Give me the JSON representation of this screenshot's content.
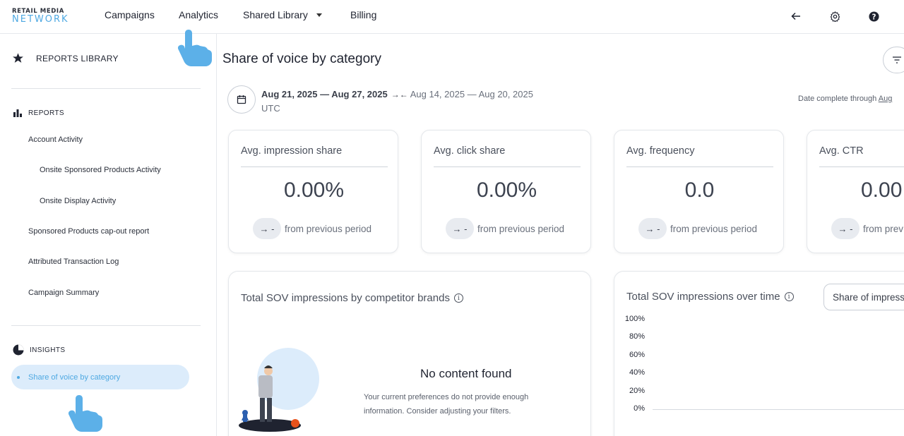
{
  "app": {
    "logo_line1": "RETAIL MEDIA",
    "logo_line2": "NETWORK",
    "brand_color": "#4fa9e2"
  },
  "topnav": {
    "items": [
      "Campaigns",
      "Analytics",
      "Shared Library",
      "Billing"
    ],
    "icons": [
      "arrow-back-icon",
      "gear-icon",
      "help-icon"
    ]
  },
  "sidebar": {
    "library_label": "REPORTS LIBRARY",
    "reports_label": "REPORTS",
    "reports": [
      "Account Activity",
      "Onsite Sponsored Products Activity",
      "Onsite Display Activity",
      "Sponsored Products cap-out report",
      "Attributed Transaction Log",
      "Campaign Summary"
    ],
    "insights_label": "INSIGHTS",
    "active_item": "Share of voice by category"
  },
  "main": {
    "title": "Share of voice by category",
    "date_current": "Aug 21, 2025 — Aug 27, 2025",
    "date_compare_glyph": "→←",
    "date_previous": "Aug 14, 2025 — Aug 20, 2025",
    "timezone": "UTC",
    "date_complete_label": "Date complete through",
    "date_complete_link": "Aug"
  },
  "kpis": [
    {
      "title": "Avg. impression share",
      "value": "0.00%",
      "chip": "→ -",
      "from": "from previous period"
    },
    {
      "title": "Avg. click share",
      "value": "0.00%",
      "chip": "→ -",
      "from": "from previous period"
    },
    {
      "title": "Avg. frequency",
      "value": "0.0",
      "chip": "→ -",
      "from": "from previous period"
    },
    {
      "title": "Avg. CTR",
      "value": "0.00",
      "chip": "→ -",
      "from": "from prev"
    }
  ],
  "panels": {
    "competitors_title": "Total SOV impressions by competitor brands",
    "empty_title": "No content found",
    "empty_desc": "Your current preferences do not provide enough information. Consider adjusting your filters.",
    "overtime_title": "Total SOV impressions over time",
    "metric_select_value": "Share of impress",
    "y_ticks": [
      "100%",
      "80%",
      "60%",
      "40%",
      "20%",
      "0%"
    ]
  }
}
